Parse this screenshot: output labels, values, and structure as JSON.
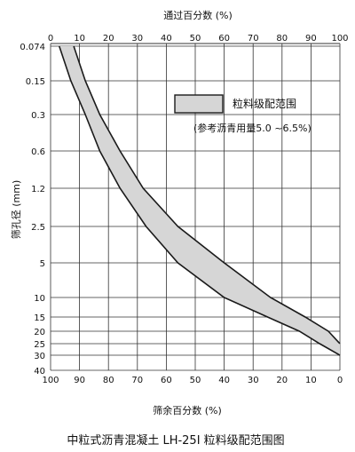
{
  "chart_data": {
    "type": "area",
    "title": "",
    "caption": "中粒式沥青混凝土 LH-25I 粒料级配范围图",
    "top_axis_label": "通过百分数 (%)",
    "bottom_axis_label": "筛余百分数 (%)",
    "y_axis_label": "筛孔径 (mm)",
    "top_ticks": [
      "0",
      "10",
      "20",
      "30",
      "40",
      "50",
      "60",
      "70",
      "80",
      "90",
      "100"
    ],
    "bottom_ticks": [
      "100",
      "90",
      "80",
      "70",
      "60",
      "50",
      "40",
      "30",
      "20",
      "10",
      "0"
    ],
    "y_ticks": [
      "0.074",
      "0.15",
      "0.3",
      "0.6",
      "1.2",
      "2.5",
      "5",
      "10",
      "15",
      "20",
      "25",
      "30",
      "40"
    ],
    "xlim": [
      0,
      100
    ],
    "legend": {
      "label": "粒料级配范围",
      "note": "(参考沥青用量5.0 ~6.5%)",
      "placement": "top-right"
    },
    "grid": true,
    "series": [
      {
        "name": "lower",
        "points": [
          {
            "sieve": "0.074",
            "passing": 3
          },
          {
            "sieve": "0.15",
            "passing": 7
          },
          {
            "sieve": "0.3",
            "passing": 12
          },
          {
            "sieve": "0.6",
            "passing": 17
          },
          {
            "sieve": "1.2",
            "passing": 24
          },
          {
            "sieve": "2.5",
            "passing": 33
          },
          {
            "sieve": "5",
            "passing": 44
          },
          {
            "sieve": "10",
            "passing": 60
          },
          {
            "sieve": "15",
            "passing": 75
          },
          {
            "sieve": "20",
            "passing": 86
          },
          {
            "sieve": "25",
            "passing": 93
          },
          {
            "sieve": "30",
            "passing": 100
          }
        ]
      },
      {
        "name": "upper",
        "points": [
          {
            "sieve": "0.074",
            "passing": 8
          },
          {
            "sieve": "0.15",
            "passing": 12
          },
          {
            "sieve": "0.3",
            "passing": 17
          },
          {
            "sieve": "0.6",
            "passing": 24
          },
          {
            "sieve": "1.2",
            "passing": 32
          },
          {
            "sieve": "2.5",
            "passing": 44
          },
          {
            "sieve": "5",
            "passing": 60
          },
          {
            "sieve": "10",
            "passing": 76
          },
          {
            "sieve": "15",
            "passing": 88
          },
          {
            "sieve": "20",
            "passing": 96
          },
          {
            "sieve": "25",
            "passing": 100
          }
        ]
      }
    ],
    "colors": {
      "band_fill": "#d6d6d6",
      "line": "#1a1a1a",
      "grid": "#333333"
    }
  }
}
